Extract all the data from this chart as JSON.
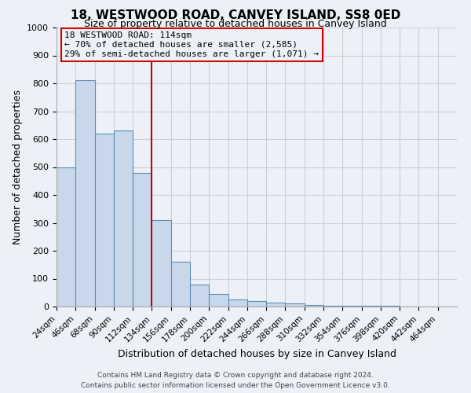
{
  "title": "18, WESTWOOD ROAD, CANVEY ISLAND, SS8 0ED",
  "subtitle": "Size of property relative to detached houses in Canvey Island",
  "xlabel": "Distribution of detached houses by size in Canvey Island",
  "ylabel": "Number of detached properties",
  "bin_labels": [
    "24sqm",
    "46sqm",
    "68sqm",
    "90sqm",
    "112sqm",
    "134sqm",
    "156sqm",
    "178sqm",
    "200sqm",
    "222sqm",
    "244sqm",
    "266sqm",
    "288sqm",
    "310sqm",
    "332sqm",
    "354sqm",
    "376sqm",
    "398sqm",
    "420sqm",
    "442sqm",
    "464sqm"
  ],
  "bar_heights": [
    500,
    810,
    620,
    630,
    480,
    310,
    160,
    80,
    45,
    25,
    20,
    15,
    10,
    5,
    3,
    2,
    2,
    2,
    1,
    1,
    1
  ],
  "bar_color": "#c8d8ea",
  "bar_edgecolor": "#5b8db8",
  "grid_color": "#c8d0dc",
  "property_line_color": "#cc0000",
  "annotation_text": "18 WESTWOOD ROAD: 114sqm\n← 70% of detached houses are smaller (2,585)\n29% of semi-detached houses are larger (1,071) →",
  "annotation_box_edgecolor": "#cc0000",
  "ylim": [
    0,
    1000
  ],
  "yticks": [
    0,
    100,
    200,
    300,
    400,
    500,
    600,
    700,
    800,
    900,
    1000
  ],
  "footer_line1": "Contains HM Land Registry data © Crown copyright and database right 2024.",
  "footer_line2": "Contains public sector information licensed under the Open Government Licence v3.0.",
  "bg_color": "#edf1f7"
}
